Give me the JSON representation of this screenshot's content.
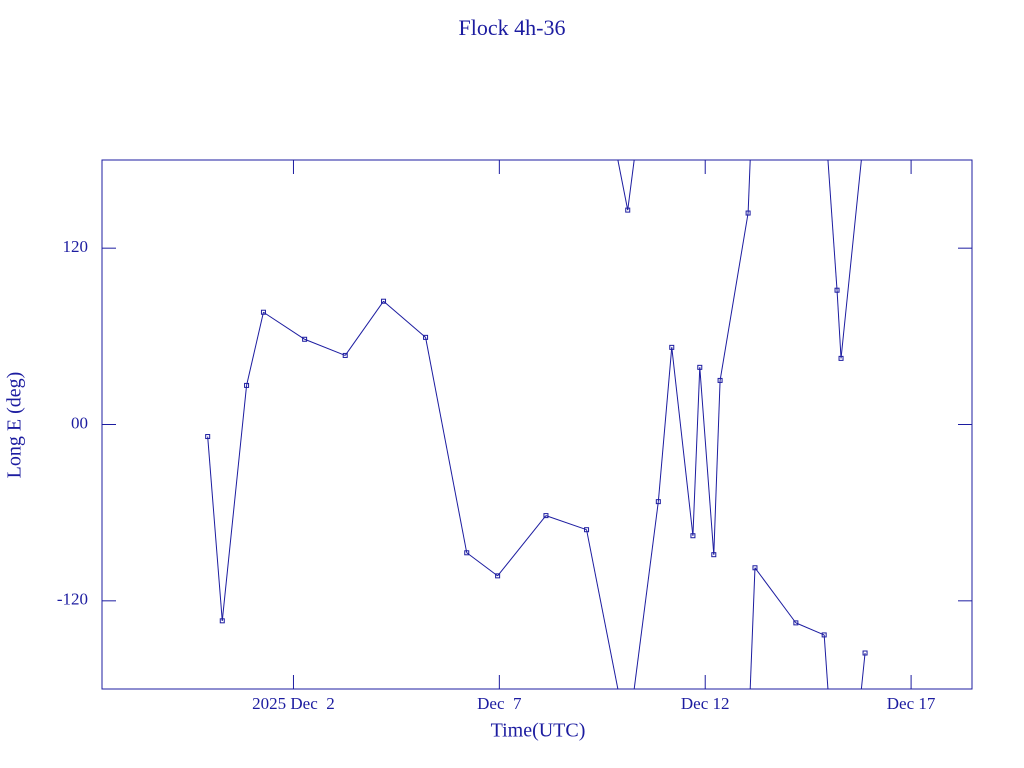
{
  "chart_data": {
    "type": "line",
    "title": "Flock 4h-36",
    "x_label": "Time(UTC)",
    "y_label": "Long E (deg)",
    "color": "#1c1ca0",
    "x": [
      "2025-11-29T22:00",
      "2025-11-30T06:30",
      "2025-11-30T20:40",
      "2025-12-01T06:30",
      "2025-12-02T06:30",
      "2025-12-03T06:10",
      "2025-12-04T04:30",
      "2025-12-05T05:00",
      "2025-12-06T05:00",
      "2025-12-06T23:00",
      "2025-12-08T03:10",
      "2025-12-09T02:50",
      "2025-12-10T02:50",
      "2025-12-10T20:40",
      "2025-12-11T04:30",
      "2025-12-11T16:50",
      "2025-12-11T20:50",
      "2025-12-12T05:00",
      "2025-12-12T08:40",
      "2025-12-13T01:00",
      "2025-12-13T05:00",
      "2025-12-14T04:50",
      "2025-12-14T21:20",
      "2025-12-15T04:50",
      "2025-12-15T07:10",
      "2025-12-15T21:10"
    ],
    "values": [
      -8.2,
      -133.6,
      26.6,
      76.4,
      58,
      47,
      83.9,
      59.3,
      -87.3,
      -103,
      -62,
      -71.6,
      145.9,
      -52.5,
      52.5,
      -75.7,
      38.9,
      -88.6,
      30,
      143.9,
      -97.5,
      -135,
      -143.2,
      91.4,
      45,
      -155.5
    ],
    "xlim": [
      "2025-11-27T08:24",
      "2025-12-18T11:30"
    ],
    "xticks": [
      {
        "value": "2025-12-02",
        "label": "2025 Dec  2"
      },
      {
        "value": "2025-12-07",
        "label": "Dec  7"
      },
      {
        "value": "2025-12-12",
        "label": "Dec 12"
      },
      {
        "value": "2025-12-17",
        "label": "Dec 17"
      }
    ],
    "ylim": [
      -180,
      180
    ],
    "yticks": [
      -120,
      {
        "value": 0,
        "label": "00"
      },
      120
    ],
    "wrap": true
  }
}
